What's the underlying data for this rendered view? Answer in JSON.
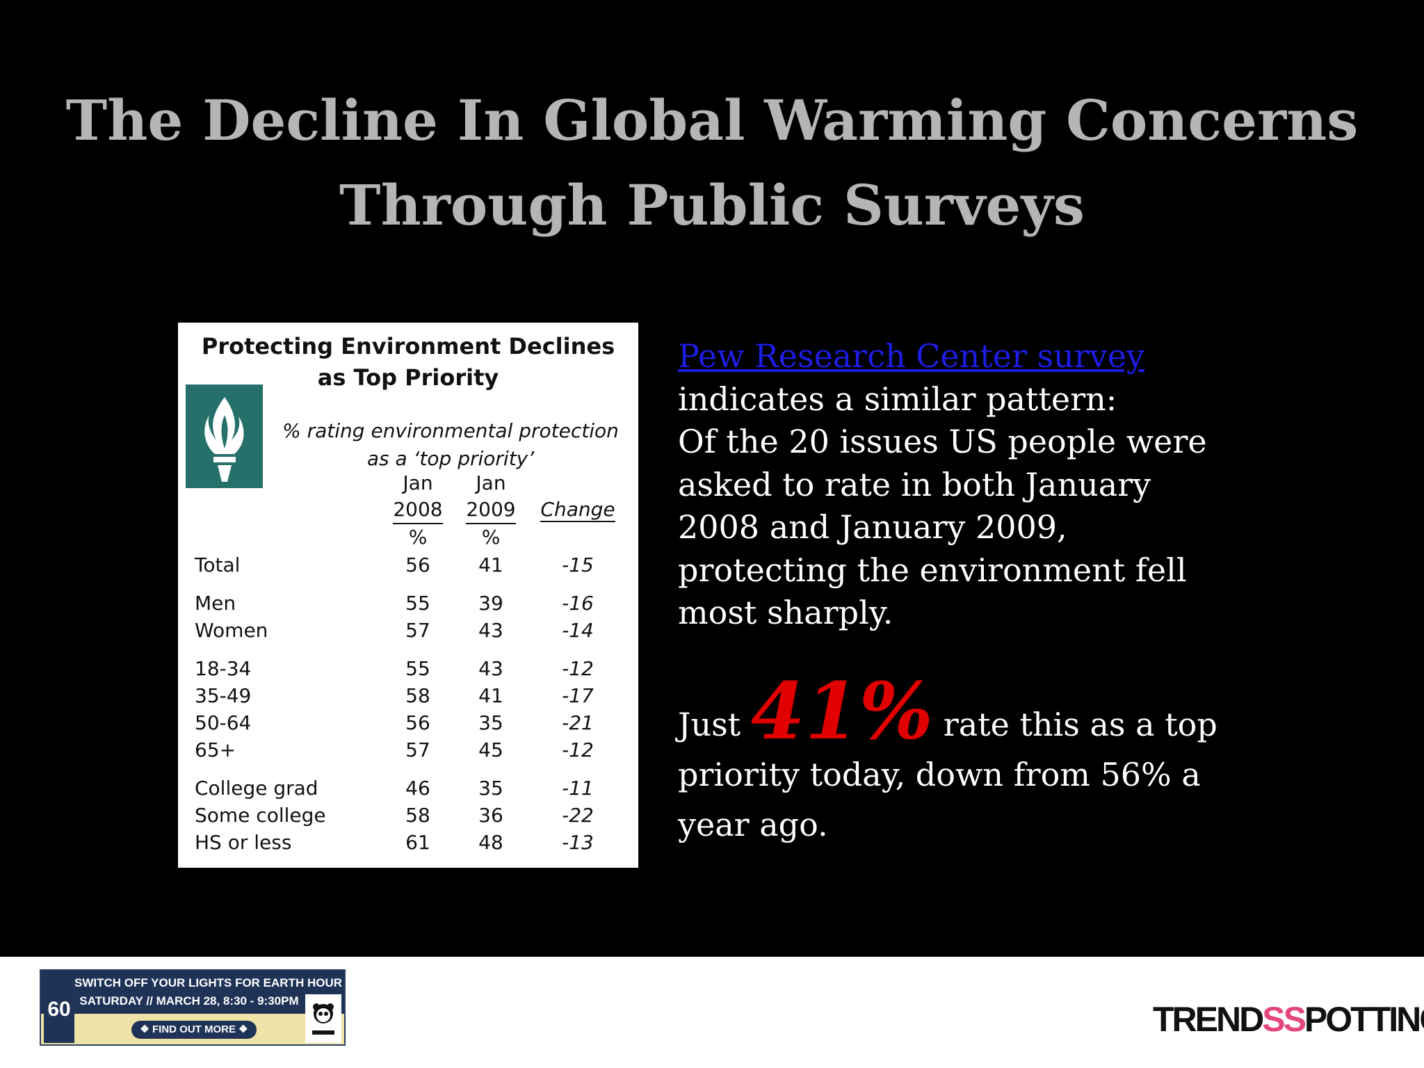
{
  "slide": {
    "title_line1": "The Decline In Global Warming Concerns",
    "title_line2": "Through Public Surveys"
  },
  "table": {
    "title_line1": "Protecting Environment Declines",
    "title_line2": "as Top Priority",
    "subtitle_line1": "% rating environmental protection",
    "subtitle_line2": "as a ‘top priority’",
    "col_a": {
      "month": "Jan",
      "year": "2008",
      "unit": "%"
    },
    "col_b": {
      "month": "Jan",
      "year": "2009",
      "unit": "%"
    },
    "col_change": "Change",
    "rows": [
      {
        "label": "Total",
        "v2008": "56",
        "v2009": "41",
        "change": "-15"
      },
      {
        "label": "Men",
        "v2008": "55",
        "v2009": "39",
        "change": "-16"
      },
      {
        "label": "Women",
        "v2008": "57",
        "v2009": "43",
        "change": "-14"
      },
      {
        "label": "18-34",
        "v2008": "55",
        "v2009": "43",
        "change": "-12"
      },
      {
        "label": "35-49",
        "v2008": "58",
        "v2009": "41",
        "change": "-17"
      },
      {
        "label": "50-64",
        "v2008": "56",
        "v2009": "35",
        "change": "-21"
      },
      {
        "label": "65+",
        "v2008": "57",
        "v2009": "45",
        "change": "-12"
      },
      {
        "label": "College grad",
        "v2008": "46",
        "v2009": "35",
        "change": "-11"
      },
      {
        "label": "Some college",
        "v2008": "58",
        "v2009": "36",
        "change": "-22"
      },
      {
        "label": "HS or less",
        "v2008": "61",
        "v2009": "48",
        "change": "-13"
      }
    ]
  },
  "body": {
    "link_text": "Pew Research Center survey",
    "line2": "indicates a similar pattern:",
    "line3": "Of the 20 issues US people were",
    "line4": "asked to rate in both January",
    "line5": "2008 and January 2009,",
    "line6": "protecting the environment fell",
    "line7": "most sharply."
  },
  "highlight": {
    "prefix": "Just",
    "percent": "41%",
    "suffix": "rate this as a top",
    "line2": "priority today, down from 56% a",
    "line3": "year ago."
  },
  "footer": {
    "banner_line1": "SWITCH OFF YOUR LIGHTS FOR EARTH HOUR",
    "banner_line2": "SATURDAY // MARCH 28, 8:30 - 9:30PM",
    "banner_cta": "❖ FIND OUT MORE ❖",
    "banner_logo": "60",
    "brand_a": "TREND",
    "brand_b": "SS",
    "brand_c": "POTTING"
  },
  "colors": {
    "background": "#000000",
    "title": "#b5b5b5",
    "link": "#1d1de6",
    "highlight": "#e00000",
    "pew_logo": "#25706a"
  }
}
